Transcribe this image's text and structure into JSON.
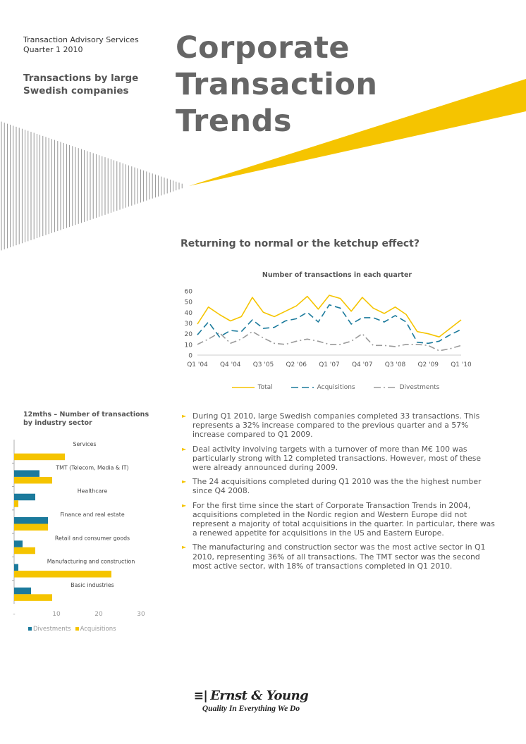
{
  "header": {
    "service": "Transaction Advisory Services",
    "period": "Quarter 1 2010",
    "subtitle": "Transactions by large Swedish companies",
    "title_lines": [
      "Corporate",
      "Transaction",
      "Trends"
    ]
  },
  "article": {
    "heading": "Returning to normal or the ketchup effect?",
    "bullets": [
      "During Q1 2010, large Swedish companies completed 33 transactions. This represents a 32% increase compared to the previous quarter and a 57% increase compared to Q1 2009.",
      "Deal activity involving targets with a turnover of more than M€ 100 was particularly strong with 12 completed transactions. However, most of these were already announced during 2009.",
      "The  24 acquisitions completed during Q1 2010 was the the highest number since Q4 2008.",
      "For the first time since the start of Corporate Transaction Trends in 2004, acquisitions completed in the Nordic region and Western Europe did not represent a majority of total acquisitions in the quarter. In particular, there was a renewed appetite for acquisitions in the US and Eastern Europe.",
      "The manufacturing and construction sector was the most active sector in Q1 2010, representing 36% of all transactions. The TMT sector was the second most active sector, with 18% of transactions completed in Q1 2010."
    ]
  },
  "colors": {
    "total": "#f5c400",
    "acquisitions": "#1b7a9c",
    "divestments": "#9a9a9a",
    "accent": "#f5c400"
  },
  "icons": {
    "bullet": "right-triangle-icon"
  },
  "footer": {
    "brand": "Ernst & Young",
    "tagline": "Quality In Everything We Do"
  },
  "chart_data": [
    {
      "type": "line",
      "title": "Number of transactions in each quarter",
      "x_tick_labels": [
        "Q1 '04",
        "Q4 '04",
        "Q3 '05",
        "Q2 '06",
        "Q1 '07",
        "Q4 '07",
        "Q3 '08",
        "Q2 '09",
        "Q1 '10"
      ],
      "x": [
        "Q1 '04",
        "Q2 '04",
        "Q3 '04",
        "Q4 '04",
        "Q1 '05",
        "Q2 '05",
        "Q3 '05",
        "Q4 '05",
        "Q1 '06",
        "Q2 '06",
        "Q3 '06",
        "Q4 '06",
        "Q1 '07",
        "Q2 '07",
        "Q3 '07",
        "Q4 '07",
        "Q1 '08",
        "Q2 '08",
        "Q3 '08",
        "Q4 '08",
        "Q1 '09",
        "Q2 '09",
        "Q3 '09",
        "Q4 '09",
        "Q1 '10"
      ],
      "ylim": [
        0,
        60
      ],
      "yticks": [
        0,
        10,
        20,
        30,
        40,
        50,
        60
      ],
      "legend_position": "bottom",
      "series": [
        {
          "name": "Total",
          "color": "#f5c400",
          "style": "solid",
          "values": [
            29,
            45,
            38,
            32,
            36,
            54,
            40,
            36,
            41,
            46,
            55,
            43,
            56,
            53,
            41,
            54,
            44,
            39,
            45,
            38,
            22,
            20,
            17,
            25,
            33
          ]
        },
        {
          "name": "Acquisitions",
          "color": "#1b7a9c",
          "style": "dashed",
          "values": [
            19,
            31,
            17,
            23,
            22,
            33,
            25,
            26,
            32,
            34,
            40,
            31,
            47,
            44,
            29,
            35,
            35,
            31,
            37,
            31,
            12,
            11,
            13,
            19,
            24
          ]
        },
        {
          "name": "Divestments",
          "color": "#9a9a9a",
          "style": "dashdot",
          "values": [
            10,
            15,
            21,
            11,
            15,
            22,
            16,
            11,
            10,
            13,
            15,
            13,
            10,
            10,
            13,
            20,
            9,
            9,
            8,
            10,
            10,
            9,
            4,
            6,
            9
          ]
        }
      ]
    },
    {
      "type": "bar",
      "orientation": "horizontal",
      "title": "12mths – Number of transactions by industry sector",
      "xlim": [
        0,
        30
      ],
      "x_tick_labels": [
        "-",
        "10",
        "20",
        "30"
      ],
      "categories": [
        "Services",
        "TMT (Telecom, Media & IT)",
        "Healthcare",
        "Finance and real estate",
        "Retail and consumer goods",
        "Manufacturing and construction",
        "Basic industries"
      ],
      "legend_position": "bottom",
      "series": [
        {
          "name": "Divestments",
          "color": "#1b7a9c",
          "values": [
            0,
            6,
            5,
            8,
            2,
            1,
            4
          ]
        },
        {
          "name": "Acquisitions",
          "color": "#f5c400",
          "values": [
            12,
            9,
            1,
            8,
            5,
            23,
            9
          ]
        }
      ]
    }
  ]
}
